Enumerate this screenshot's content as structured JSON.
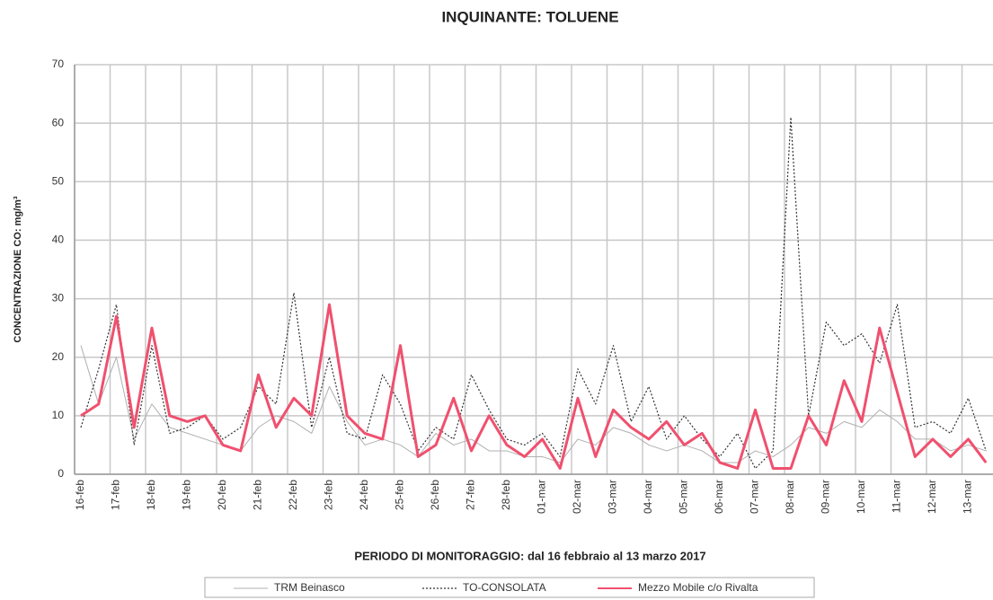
{
  "chart_data": {
    "type": "line",
    "title": "INQUINANTE: TOLUENE",
    "x_label": "PERIODO DI MONITORAGGIO: dal 16 febbraio al 13 marzo 2017",
    "y_label": "CONCENTRAZIONE CO: mg/m³",
    "categories": [
      "16-feb",
      null,
      "17-feb",
      null,
      "18-feb",
      null,
      "19-feb",
      null,
      "20-feb",
      null,
      "21-feb",
      null,
      "22-feb",
      null,
      "23-feb",
      null,
      "24-feb",
      null,
      "25-feb",
      null,
      "26-feb",
      null,
      "27-feb",
      null,
      "28-feb",
      null,
      "01-mar",
      null,
      "02-mar",
      null,
      "03-mar",
      null,
      "04-mar",
      null,
      "05-mar",
      null,
      "06-mar",
      null,
      "07-mar",
      null,
      "08-mar",
      null,
      "09-mar",
      null,
      "10-mar",
      null,
      "11-mar",
      null,
      "12-mar",
      null,
      "13-mar",
      null
    ],
    "series": [
      {
        "name": "TRM Beinasco",
        "color": "#b0b0b0",
        "linestyle": "solid",
        "width": 1,
        "values": [
          22,
          12,
          20,
          6,
          12,
          8,
          7,
          6,
          5,
          4,
          8,
          10,
          9,
          7,
          15,
          9,
          5,
          6,
          5,
          3,
          7,
          5,
          6,
          4,
          4,
          3,
          3,
          2,
          6,
          5,
          8,
          7,
          5,
          4,
          5,
          4,
          2,
          2,
          4,
          3,
          5,
          8,
          7,
          9,
          8,
          11,
          9,
          6,
          6,
          4,
          5,
          4
        ]
      },
      {
        "name": "TO-CONSOLATA",
        "color": "#333333",
        "linestyle": "dotted",
        "width": 1.2,
        "values": [
          8,
          18,
          29,
          5,
          22,
          7,
          8,
          10,
          6,
          8,
          15,
          12,
          31,
          8,
          20,
          7,
          6,
          17,
          12,
          4,
          8,
          6,
          17,
          11,
          6,
          5,
          7,
          3,
          18,
          12,
          22,
          9,
          15,
          6,
          10,
          6,
          3,
          7,
          1,
          4,
          61,
          10,
          26,
          22,
          24,
          19,
          29,
          8,
          9,
          7,
          13,
          4
        ]
      },
      {
        "name": "Mezzo Mobile c/o Rivalta",
        "color": "#f0506e",
        "linestyle": "solid",
        "width": 3,
        "values": [
          10,
          12,
          27,
          8,
          25,
          10,
          9,
          10,
          5,
          4,
          17,
          8,
          13,
          10,
          29,
          10,
          7,
          6,
          22,
          3,
          5,
          13,
          4,
          10,
          5,
          3,
          6,
          1,
          13,
          3,
          11,
          8,
          6,
          9,
          5,
          7,
          2,
          1,
          11,
          1,
          1,
          10,
          5,
          16,
          9,
          25,
          14,
          3,
          6,
          3,
          6,
          2
        ]
      }
    ],
    "ylim": [
      0,
      70
    ],
    "yticks": [
      0,
      10,
      20,
      30,
      40,
      50,
      60,
      70
    ],
    "grid": true
  }
}
